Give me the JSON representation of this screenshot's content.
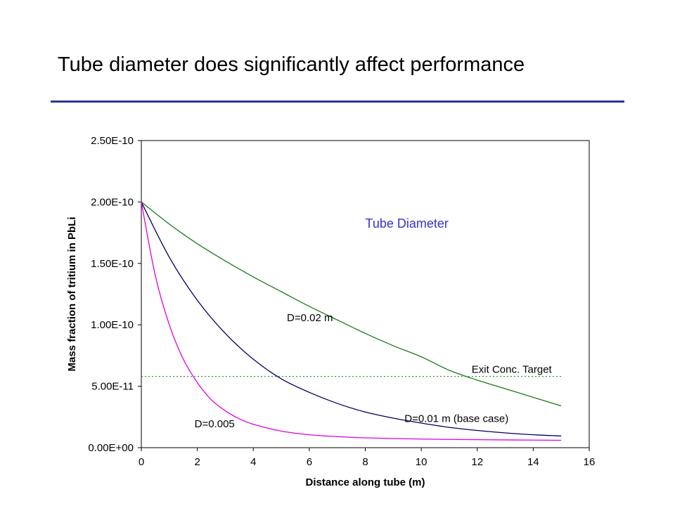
{
  "slide": {
    "title": "Tube diameter does significantly affect performance",
    "rule_color": "#2f3497"
  },
  "chart_data": {
    "type": "line",
    "title": "",
    "xlabel": "Distance along tube (m)",
    "ylabel": "Mass fraction of tritium in PbLi",
    "xlim": [
      0,
      16
    ],
    "ylim": [
      0,
      2.5e-10
    ],
    "x_ticks": [
      0,
      2,
      4,
      6,
      8,
      10,
      12,
      14,
      16
    ],
    "y_ticks": [
      0,
      5e-11,
      1e-10,
      1.5e-10,
      2e-10,
      2.5e-10
    ],
    "x_tick_labels": [
      "0",
      "2",
      "4",
      "6",
      "8",
      "10",
      "12",
      "14",
      "16"
    ],
    "y_tick_labels": [
      "0.00E+00",
      "5.00E-11",
      "1.00E-10",
      "1.50E-10",
      "2.00E-10",
      "2.50E-10"
    ],
    "grid": false,
    "legend_title": "Tube Diameter",
    "legend_title_color": "#3333cc",
    "series": [
      {
        "name": "D=0.02 m",
        "color": "#1a7a1a",
        "x": [
          0,
          1,
          2,
          3,
          4,
          5,
          6,
          7,
          8,
          9,
          10,
          11,
          12,
          13,
          14,
          15
        ],
        "y": [
          2e-10,
          1.82e-10,
          1.66e-10,
          1.52e-10,
          1.39e-10,
          1.27e-10,
          1.15e-10,
          1.04e-10,
          9.3e-11,
          8.3e-11,
          7.4e-11,
          6.3e-11,
          5.5e-11,
          4.8e-11,
          4.1e-11,
          3.4e-11
        ]
      },
      {
        "name": "D=0.01 m (base case)",
        "color": "#000066",
        "x": [
          0,
          1,
          2,
          3,
          4,
          5,
          6,
          7,
          8,
          9,
          10,
          11,
          12,
          13,
          14,
          15
        ],
        "y": [
          2e-10,
          1.55e-10,
          1.2e-10,
          9.3e-11,
          7.2e-11,
          5.6e-11,
          4.5e-11,
          3.6e-11,
          2.9e-11,
          2.4e-11,
          2e-11,
          1.65e-11,
          1.4e-11,
          1.2e-11,
          1.05e-11,
          9.5e-12
        ]
      },
      {
        "name": "D=0.005",
        "color": "#dd00dd",
        "x": [
          0,
          0.5,
          1,
          1.5,
          2,
          2.5,
          3,
          3.5,
          4,
          5,
          6,
          7,
          8,
          10,
          12,
          15
        ],
        "y": [
          2e-10,
          1.4e-10,
          1e-10,
          7.2e-11,
          5.3e-11,
          3.9e-11,
          3e-11,
          2.35e-11,
          1.9e-11,
          1.35e-11,
          1.05e-11,
          9e-12,
          8e-12,
          7e-12,
          6.5e-12,
          6e-12
        ]
      }
    ],
    "reference_line": {
      "name": "Exit Conc. Target",
      "y": 5.8e-11,
      "x_range": [
        0,
        15
      ],
      "color": "#1a7a1a",
      "style": "dotted"
    },
    "annotations": [
      {
        "text": "D=0.02 m",
        "x": 5.2,
        "y": 1.03e-10
      },
      {
        "text": "Exit Conc. Target",
        "x": 11.8,
        "y": 6.1e-11
      },
      {
        "text": "D=0.01 m (base case)",
        "x": 9.4,
        "y": 2.1e-11
      },
      {
        "text": "D=0.005",
        "x": 1.9,
        "y": 1.65e-11
      },
      {
        "text": "Tube Diameter",
        "x": 8.0,
        "y": 1.79e-10,
        "role": "legend-title"
      }
    ]
  }
}
